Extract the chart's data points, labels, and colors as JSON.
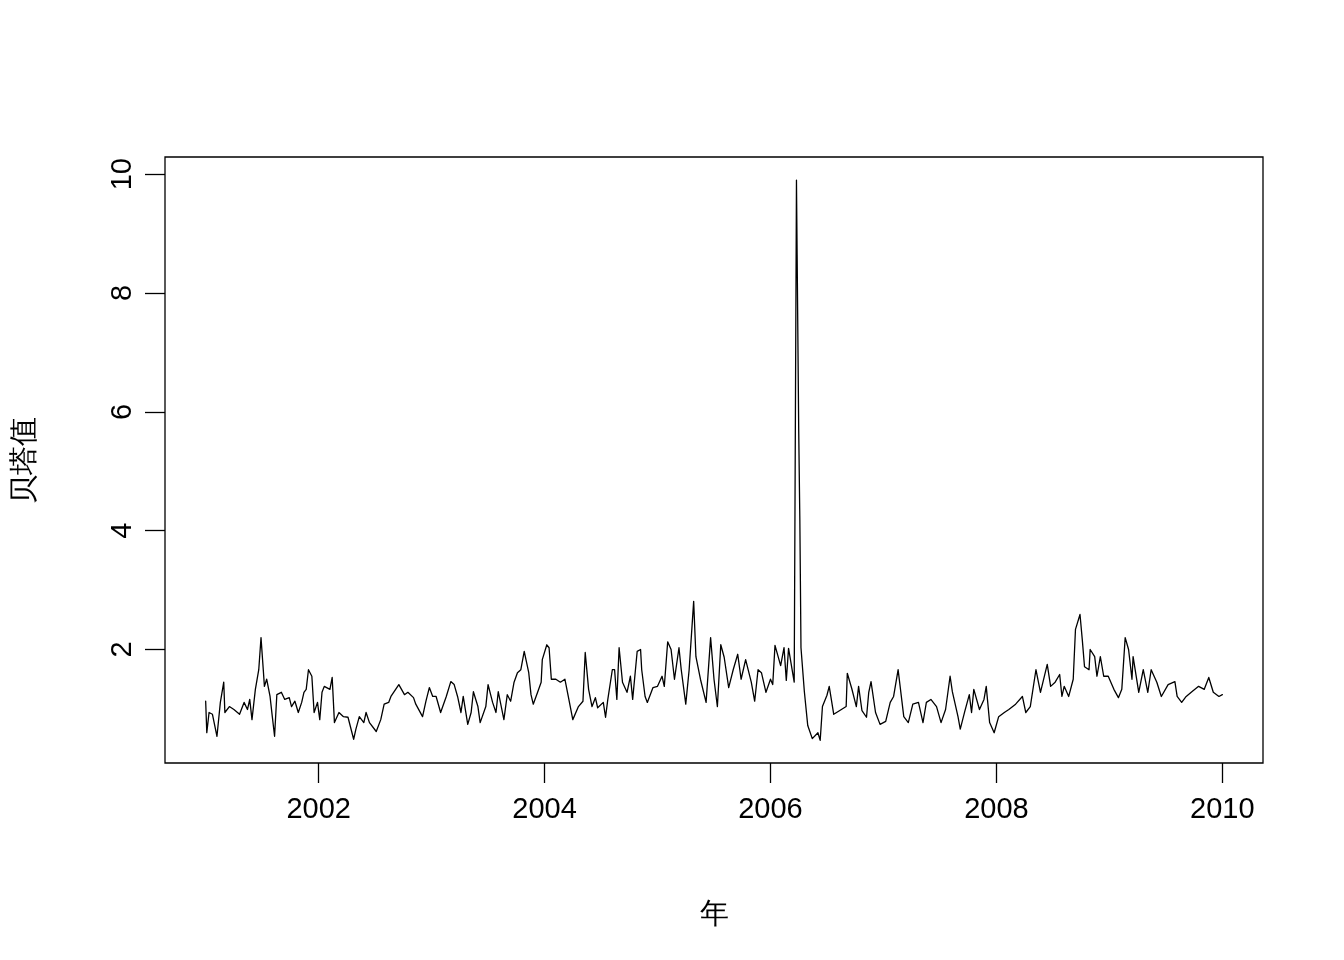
{
  "chart_data": {
    "type": "line",
    "xlabel": "年",
    "ylabel": "贝塔值",
    "color": "#000000",
    "line_style": "solid",
    "xlim": [
      2000.64,
      2010.36
    ],
    "ylim": [
      0.09,
      10.29
    ],
    "xticks": [
      2002,
      2004,
      2006,
      2008,
      2010
    ],
    "yticks": [
      2,
      4,
      6,
      8,
      10
    ],
    "x": [
      2001.0,
      2001.01,
      2001.03,
      2001.06,
      2001.1,
      2001.13,
      2001.16,
      2001.17,
      2001.21,
      2001.25,
      2001.3,
      2001.34,
      2001.37,
      2001.39,
      2001.41,
      2001.44,
      2001.47,
      2001.49,
      2001.51,
      2001.52,
      2001.54,
      2001.57,
      2001.59,
      2001.61,
      2001.63,
      2001.67,
      2001.7,
      2001.74,
      2001.76,
      2001.79,
      2001.82,
      2001.85,
      2001.87,
      2001.89,
      2001.91,
      2001.94,
      2001.96,
      2001.99,
      2002.01,
      2002.03,
      2002.05,
      2002.1,
      2002.12,
      2002.14,
      2002.18,
      2002.22,
      2002.26,
      2002.31,
      2002.33,
      2002.36,
      2002.4,
      2002.42,
      2002.45,
      2002.51,
      2002.55,
      2002.58,
      2002.62,
      2002.64,
      2002.71,
      2002.76,
      2002.79,
      2002.84,
      2002.86,
      2002.92,
      2002.95,
      2002.98,
      2003.01,
      2003.04,
      2003.08,
      2003.13,
      2003.17,
      2003.2,
      2003.23,
      2003.26,
      2003.28,
      2003.32,
      2003.35,
      2003.37,
      2003.41,
      2003.43,
      2003.48,
      2003.5,
      2003.54,
      2003.57,
      2003.59,
      2003.64,
      2003.67,
      2003.7,
      2003.73,
      2003.76,
      2003.79,
      2003.82,
      2003.86,
      2003.88,
      2003.9,
      2003.94,
      2003.97,
      2003.98,
      2004.02,
      2004.04,
      2004.06,
      2004.1,
      2004.14,
      2004.18,
      2004.21,
      2004.25,
      2004.3,
      2004.34,
      2004.36,
      2004.39,
      2004.42,
      2004.45,
      2004.47,
      2004.52,
      2004.54,
      2004.56,
      2004.6,
      2004.62,
      2004.64,
      2004.66,
      2004.69,
      2004.73,
      2004.76,
      2004.78,
      2004.82,
      2004.85,
      2004.86,
      2004.89,
      2004.91,
      2004.96,
      2005.0,
      2005.04,
      2005.06,
      2005.09,
      2005.12,
      2005.15,
      2005.19,
      2005.21,
      2005.25,
      2005.28,
      2005.32,
      2005.34,
      2005.38,
      2005.43,
      2005.47,
      2005.5,
      2005.53,
      2005.56,
      2005.59,
      2005.63,
      2005.67,
      2005.71,
      2005.74,
      2005.78,
      2005.83,
      2005.86,
      2005.89,
      2005.92,
      2005.96,
      2006.0,
      2006.02,
      2006.04,
      2006.09,
      2006.12,
      2006.14,
      2006.16,
      2006.21,
      2006.23,
      2006.24,
      2006.25,
      2006.26,
      2006.27,
      2006.3,
      2006.33,
      2006.37,
      2006.42,
      2006.44,
      2006.46,
      2006.5,
      2006.52,
      2006.56,
      2006.61,
      2006.67,
      2006.68,
      2006.72,
      2006.76,
      2006.78,
      2006.81,
      2006.85,
      2006.87,
      2006.89,
      2006.93,
      2006.97,
      2007.02,
      2007.06,
      2007.09,
      2007.13,
      2007.18,
      2007.22,
      2007.26,
      2007.31,
      2007.35,
      2007.38,
      2007.42,
      2007.47,
      2007.51,
      2007.55,
      2007.59,
      2007.61,
      2007.66,
      2007.68,
      2007.72,
      2007.76,
      2007.78,
      2007.8,
      2007.85,
      2007.89,
      2007.91,
      2007.94,
      2007.98,
      2008.02,
      2008.07,
      2008.11,
      2008.17,
      2008.23,
      2008.26,
      2008.3,
      2008.35,
      2008.39,
      2008.45,
      2008.48,
      2008.52,
      2008.56,
      2008.58,
      2008.6,
      2008.64,
      2008.68,
      2008.7,
      2008.74,
      2008.76,
      2008.78,
      2008.82,
      2008.83,
      2008.87,
      2008.89,
      2008.92,
      2008.95,
      2008.99,
      2009.04,
      2009.08,
      2009.11,
      2009.14,
      2009.17,
      2009.2,
      2009.21,
      2009.26,
      2009.3,
      2009.34,
      2009.37,
      2009.42,
      2009.46,
      2009.52,
      2009.58,
      2009.6,
      2009.64,
      2009.68,
      2009.73,
      2009.79,
      2009.84,
      2009.88,
      2009.92,
      2009.97,
      2010.0
    ],
    "values": [
      1.13,
      0.6,
      0.94,
      0.91,
      0.54,
      1.11,
      1.45,
      0.94,
      1.04,
      0.99,
      0.91,
      1.11,
      0.99,
      1.16,
      0.82,
      1.33,
      1.66,
      2.2,
      1.66,
      1.38,
      1.5,
      1.21,
      0.87,
      0.54,
      1.24,
      1.28,
      1.16,
      1.19,
      1.04,
      1.13,
      0.94,
      1.11,
      1.28,
      1.33,
      1.66,
      1.55,
      0.94,
      1.11,
      0.82,
      1.28,
      1.38,
      1.33,
      1.53,
      0.77,
      0.94,
      0.87,
      0.86,
      0.49,
      0.66,
      0.87,
      0.77,
      0.94,
      0.77,
      0.62,
      0.82,
      1.08,
      1.11,
      1.21,
      1.41,
      1.24,
      1.28,
      1.19,
      1.08,
      0.87,
      1.13,
      1.36,
      1.21,
      1.21,
      0.94,
      1.21,
      1.46,
      1.41,
      1.21,
      0.94,
      1.21,
      0.74,
      0.94,
      1.29,
      1.04,
      0.77,
      1.04,
      1.41,
      1.11,
      0.94,
      1.29,
      0.82,
      1.24,
      1.13,
      1.45,
      1.61,
      1.66,
      1.97,
      1.61,
      1.24,
      1.08,
      1.29,
      1.45,
      1.83,
      2.08,
      2.03,
      1.5,
      1.5,
      1.45,
      1.5,
      1.21,
      0.82,
      1.04,
      1.13,
      1.95,
      1.33,
      1.04,
      1.19,
      1.02,
      1.11,
      0.86,
      1.16,
      1.66,
      1.66,
      1.16,
      2.03,
      1.45,
      1.28,
      1.55,
      1.16,
      1.97,
      2.0,
      1.66,
      1.21,
      1.11,
      1.36,
      1.38,
      1.55,
      1.38,
      2.13,
      2.0,
      1.5,
      2.03,
      1.66,
      1.08,
      1.66,
      2.81,
      1.88,
      1.5,
      1.11,
      2.2,
      1.5,
      1.04,
      2.08,
      1.87,
      1.36,
      1.66,
      1.92,
      1.5,
      1.83,
      1.45,
      1.13,
      1.66,
      1.61,
      1.28,
      1.5,
      1.41,
      2.07,
      1.73,
      2.03,
      1.48,
      2.02,
      1.45,
      9.9,
      7.78,
      5.68,
      4.17,
      2.03,
      1.29,
      0.72,
      0.5,
      0.6,
      0.47,
      1.04,
      1.23,
      1.38,
      0.91,
      0.97,
      1.04,
      1.6,
      1.34,
      1.04,
      1.38,
      0.97,
      0.86,
      1.28,
      1.46,
      0.94,
      0.74,
      0.79,
      1.11,
      1.21,
      1.66,
      0.87,
      0.77,
      1.08,
      1.11,
      0.77,
      1.11,
      1.16,
      1.04,
      0.77,
      0.99,
      1.55,
      1.29,
      0.87,
      0.66,
      0.96,
      1.24,
      0.94,
      1.33,
      0.99,
      1.16,
      1.38,
      0.77,
      0.6,
      0.87,
      0.94,
      0.99,
      1.08,
      1.21,
      0.94,
      1.04,
      1.66,
      1.28,
      1.75,
      1.38,
      1.45,
      1.58,
      1.21,
      1.38,
      1.21,
      1.5,
      2.34,
      2.59,
      2.17,
      1.71,
      1.66,
      2.0,
      1.88,
      1.55,
      1.88,
      1.55,
      1.55,
      1.33,
      1.19,
      1.33,
      2.2,
      2.0,
      1.5,
      1.88,
      1.28,
      1.66,
      1.28,
      1.66,
      1.45,
      1.21,
      1.41,
      1.46,
      1.21,
      1.11,
      1.21,
      1.29,
      1.38,
      1.33,
      1.53,
      1.28,
      1.21,
      1.24
    ]
  }
}
